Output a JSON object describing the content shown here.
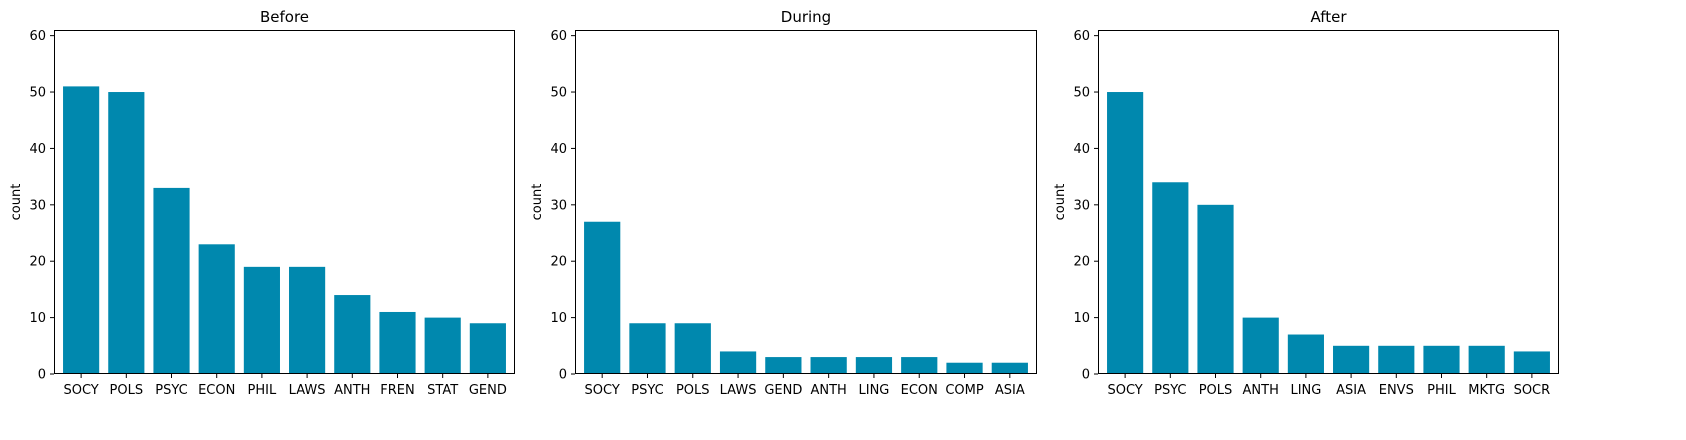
{
  "chart_data": [
    {
      "type": "bar",
      "title": "Before",
      "xlabel": "",
      "ylabel": "count",
      "ylim": [
        0,
        61
      ],
      "yticks": [
        0,
        10,
        20,
        30,
        40,
        50,
        60
      ],
      "categories": [
        "SOCY",
        "POLS",
        "PSYC",
        "ECON",
        "PHIL",
        "LAWS",
        "ANTH",
        "FREN",
        "STAT",
        "GEND"
      ],
      "values": [
        51,
        50,
        33,
        23,
        19,
        19,
        14,
        11,
        10,
        9
      ],
      "bar_color": "#0088ae",
      "grid": false
    },
    {
      "type": "bar",
      "title": "During",
      "xlabel": "",
      "ylabel": "count",
      "ylim": [
        0,
        61
      ],
      "yticks": [
        0,
        10,
        20,
        30,
        40,
        50,
        60
      ],
      "categories": [
        "SOCY",
        "PSYC",
        "POLS",
        "LAWS",
        "GEND",
        "ANTH",
        "LING",
        "ECON",
        "COMP",
        "ASIA"
      ],
      "values": [
        27,
        9,
        9,
        4,
        3,
        3,
        3,
        3,
        2,
        2
      ],
      "bar_color": "#0088ae",
      "grid": false
    },
    {
      "type": "bar",
      "title": "After",
      "xlabel": "",
      "ylabel": "count",
      "ylim": [
        0,
        61
      ],
      "yticks": [
        0,
        10,
        20,
        30,
        40,
        50,
        60
      ],
      "categories": [
        "SOCY",
        "PSYC",
        "POLS",
        "ANTH",
        "LING",
        "ASIA",
        "ENVS",
        "PHIL",
        "MKTG",
        "SOCR"
      ],
      "values": [
        50,
        34,
        30,
        10,
        7,
        5,
        5,
        5,
        5,
        4
      ],
      "bar_color": "#0088ae",
      "grid": false
    }
  ]
}
